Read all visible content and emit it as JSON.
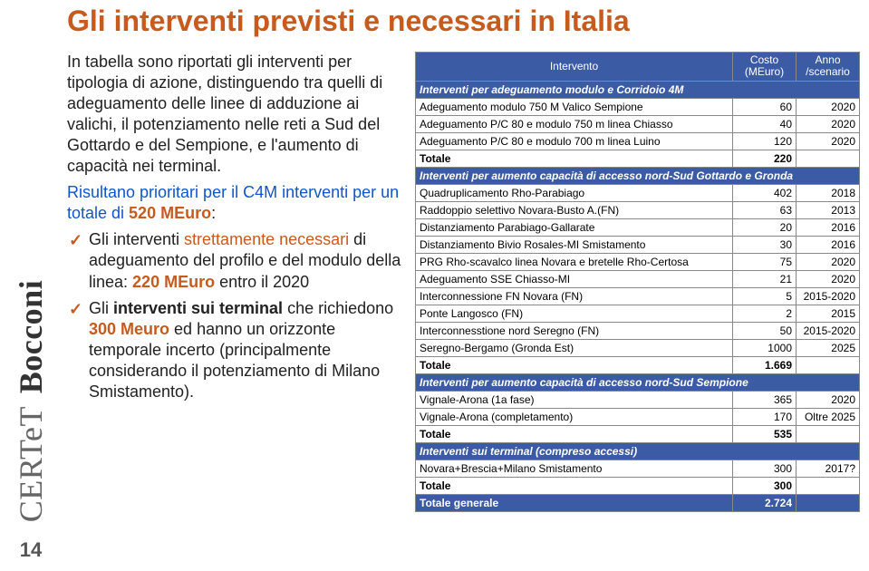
{
  "page_number": "14",
  "logo_line1": "CERTeT",
  "logo_line2": "Bocconi",
  "title": "Gli interventi previsti e necessari in Italia",
  "narrative": {
    "intro": "In tabella sono riportati gli interventi per tipologia di azione, distinguendo tra quelli di adeguamento delle linee di adduzione ai valichi, il potenziamento nelle reti a Sud del Gottardo e del Sempione, e l'aumento di capacità nei terminal.",
    "priority_line1": "Risultano prioritari per il C4M interventi per un totale di ",
    "amount1": "520 MEuro",
    "bullet1_pre": "Gli interventi ",
    "bullet1_accent": "strettamente necessari",
    "bullet1_post": " di adeguamento del profilo e del modulo della linea: ",
    "bullet1_amount": "220 MEuro",
    "bullet1_tail": " entro il 2020",
    "bullet2_pre": "Gli ",
    "bullet2_bold": "interventi sui terminal",
    "bullet2_mid": " che richiedono ",
    "bullet2_amount": "300 Meuro",
    "bullet2_tail": " ed hanno un orizzonte temporale incerto (principalmente considerando il potenziamento di Milano Smistamento)."
  },
  "table": {
    "headers": [
      "Intervento",
      "Costo (MEuro)",
      "Anno /scenario"
    ],
    "colors": {
      "header_bg": "#3b5ba5",
      "header_fg": "#ffffff",
      "border": "#888888"
    },
    "sections": [
      {
        "title": "Interventi per adeguamento modulo e Corridoio 4M",
        "rows": [
          [
            "Adeguamento modulo 750 M Valico Sempione",
            "60",
            "2020"
          ],
          [
            "Adeguamento P/C 80 e modulo 750 m linea Chiasso",
            "40",
            "2020"
          ],
          [
            "Adeguamento P/C 80 e modulo 700 m linea Luino",
            "120",
            "2020"
          ]
        ],
        "total": [
          "Totale",
          "220",
          ""
        ]
      },
      {
        "title": "Interventi per aumento capacità di accesso nord-Sud Gottardo e Gronda",
        "rows": [
          [
            "Quadruplicamento Rho-Parabiago",
            "402",
            "2018"
          ],
          [
            "Raddoppio selettivo Novara-Busto A.(FN)",
            "63",
            "2013"
          ],
          [
            "Distanziamento Parabiago-Gallarate",
            "20",
            "2016"
          ],
          [
            "Distanziamento Bivio Rosales-MI Smistamento",
            "30",
            "2016"
          ],
          [
            "PRG Rho-scavalco linea Novara e bretelle Rho-Certosa",
            "75",
            "2020"
          ],
          [
            "Adeguamento SSE Chiasso-MI",
            "21",
            "2020"
          ],
          [
            "Interconnessione FN Novara (FN)",
            "5",
            "2015-2020"
          ],
          [
            "Ponte Langosco (FN)",
            "2",
            "2015"
          ],
          [
            "Interconnesstione nord Seregno (FN)",
            "50",
            "2015-2020"
          ],
          [
            "Seregno-Bergamo (Gronda Est)",
            "1000",
            "2025"
          ]
        ],
        "total": [
          "Totale",
          "1.669",
          ""
        ]
      },
      {
        "title": "Interventi per aumento capacità di accesso nord-Sud Sempione",
        "rows": [
          [
            "Vignale-Arona (1a fase)",
            "365",
            "2020"
          ],
          [
            "Vignale-Arona (completamento)",
            "170",
            "Oltre 2025"
          ]
        ],
        "total": [
          "Totale",
          "535",
          ""
        ]
      },
      {
        "title": "Interventi sui terminal (compreso accessi)",
        "rows": [
          [
            "Novara+Brescia+Milano Smistamento",
            "300",
            "2017?"
          ]
        ],
        "total": [
          "Totale",
          "300",
          ""
        ]
      }
    ],
    "grand_total": [
      "Totale generale",
      "2.724",
      ""
    ]
  }
}
